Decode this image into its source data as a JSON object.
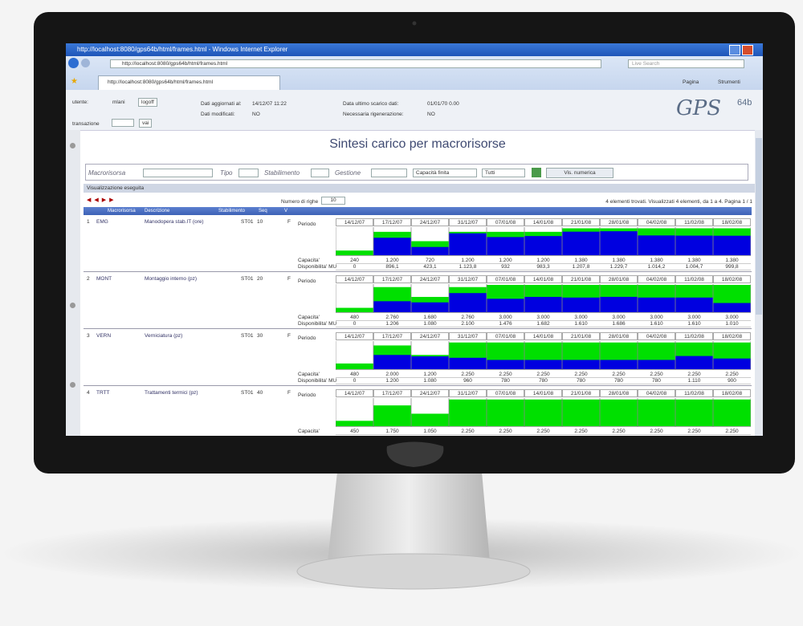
{
  "browser": {
    "title": "http://localhost:8080/gps64b/html/frames.html - Windows Internet Explorer",
    "address": "http://localhost:8080/gps64b/html/frames.html",
    "search": "Live Search",
    "tab": "http://localhost:8080/gps64b/html/frames.html",
    "menu": [
      "Pagina",
      "Strumenti"
    ]
  },
  "header": {
    "user_label": "utente:",
    "user": "mlani",
    "logoff": "logoff",
    "transaction_label": "transazione",
    "go": "vai",
    "updated_label": "Dati aggiornati al:",
    "updated": "14/12/07 11:22",
    "modified_label": "Dati modificati:",
    "modified": "NO",
    "download_label": "Data ultimo scarico dati:",
    "download": "01/01/70 0.00",
    "regen_label": "Necessaria rigenerazione:",
    "regen": "NO",
    "logo": "GPS",
    "logo_version": "64b"
  },
  "page": {
    "title": "Sintesi carico per macrorisorse",
    "filters": {
      "macro": "Macrorisorsa",
      "type": "Tipo",
      "plant": "Stabilimento",
      "management": "Gestione",
      "capacity": "Capacità finita",
      "all": "Tutti",
      "button": "Vis. numerica"
    },
    "status": "Visualizzazione eseguita",
    "rows_label": "Numero di righe",
    "rows_value": "10",
    "summary": "4 elementi trovati. Visualizzati 4 elementi, da 1 a 4. Pagina 1 / 1"
  },
  "table": {
    "columns": [
      "Macrorisorsa",
      "Descrizione",
      "Stabilimento",
      "Seq",
      "V"
    ],
    "period_label": "Periodo",
    "periods": [
      "14/12/07",
      "17/12/07",
      "24/12/07",
      "31/12/07",
      "07/01/08",
      "14/01/08",
      "21/01/08",
      "28/01/08",
      "04/02/08",
      "11/02/08",
      "18/02/08"
    ],
    "rows": [
      {
        "index": "1",
        "code": "EMG",
        "description": "Manodopera stab.IT (ore)",
        "plant": "ST01",
        "seq": "10",
        "v": "F",
        "ylim": [
          0,
          1400
        ],
        "series": [
          {
            "name": "Capacita'",
            "color": "#00e000",
            "values": [
              240,
              1200,
              720,
              1200,
              1200,
              1200,
              1380,
              1380,
              1380,
              1380,
              1380
            ],
            "value_labels": [
              "240",
              "1.200",
              "720",
              "1.200",
              "1.200",
              "1.200",
              "1.380",
              "1.380",
              "1.380",
              "1.380",
              "1.380"
            ]
          },
          {
            "name": "Disponibilita' MU",
            "color": "#0000e0",
            "values": [
              0,
              896.1,
              423.1,
              1123.8,
              932,
              983.3,
              1207.8,
              1229.7,
              1014.2,
              1004.7,
              999.8
            ],
            "value_labels": [
              "0",
              "896,1",
              "423,1",
              "1.123,8",
              "932",
              "983,3",
              "1.207,8",
              "1.229,7",
              "1.014,2",
              "1.004,7",
              "999,8"
            ]
          }
        ]
      },
      {
        "index": "2",
        "code": "MONT",
        "description": "Montaggio interno (pz)",
        "plant": "ST01",
        "seq": "20",
        "v": "F",
        "ylim": [
          0,
          3000
        ],
        "series": [
          {
            "name": "Capacita'",
            "color": "#00e000",
            "values": [
              480,
              2760,
              1680,
              2760,
              3000,
              3000,
              3000,
              3000,
              3000,
              3000,
              3000
            ],
            "value_labels": [
              "480",
              "2.760",
              "1.680",
              "2.760",
              "3.000",
              "3.000",
              "3.000",
              "3.000",
              "3.000",
              "3.000",
              "3.000"
            ]
          },
          {
            "name": "Disponibilita' MU",
            "color": "#0000e0",
            "values": [
              0,
              1206,
              1080,
              2100,
              1476,
              1682,
              1610,
              1686,
              1610,
              1610,
              1010
            ],
            "value_labels": [
              "0",
              "1.206",
              "1.080",
              "2.100",
              "1.476",
              "1.682",
              "1.610",
              "1.686",
              "1.610",
              "1.610",
              "1.010"
            ]
          }
        ]
      },
      {
        "index": "3",
        "code": "VERN",
        "description": "Verniciatura (pz)",
        "plant": "ST01",
        "seq": "30",
        "v": "F",
        "ylim": [
          0,
          2300
        ],
        "series": [
          {
            "name": "Capacita'",
            "color": "#00e000",
            "values": [
              480,
              2000,
              1200,
              2250,
              2250,
              2250,
              2250,
              2250,
              2250,
              2250,
              2250
            ],
            "value_labels": [
              "480",
              "2.000",
              "1.200",
              "2.250",
              "2.250",
              "2.250",
              "2.250",
              "2.250",
              "2.250",
              "2.250",
              "2.250"
            ]
          },
          {
            "name": "Disponibilita' MU",
            "color": "#0000e0",
            "values": [
              0,
              1200,
              1080,
              960,
              780,
              780,
              780,
              780,
              780,
              1110,
              900
            ],
            "value_labels": [
              "0",
              "1.200",
              "1.080",
              "960",
              "780",
              "780",
              "780",
              "780",
              "780",
              "1.110",
              "900"
            ]
          }
        ]
      },
      {
        "index": "4",
        "code": "TRTT",
        "description": "Trattamenti termici (pz)",
        "plant": "ST01",
        "seq": "40",
        "v": "F",
        "ylim": [
          0,
          2300
        ],
        "series": [
          {
            "name": "Capacita'",
            "color": "#00e000",
            "values": [
              450,
              1750,
              1050,
              2250,
              2250,
              2250,
              2250,
              2250,
              2250,
              2250,
              2250
            ],
            "value_labels": [
              "450",
              "1.750",
              "1.050",
              "2.250",
              "2.250",
              "2.250",
              "2.250",
              "2.250",
              "2.250",
              "2.250",
              "2.250"
            ]
          }
        ]
      }
    ]
  }
}
